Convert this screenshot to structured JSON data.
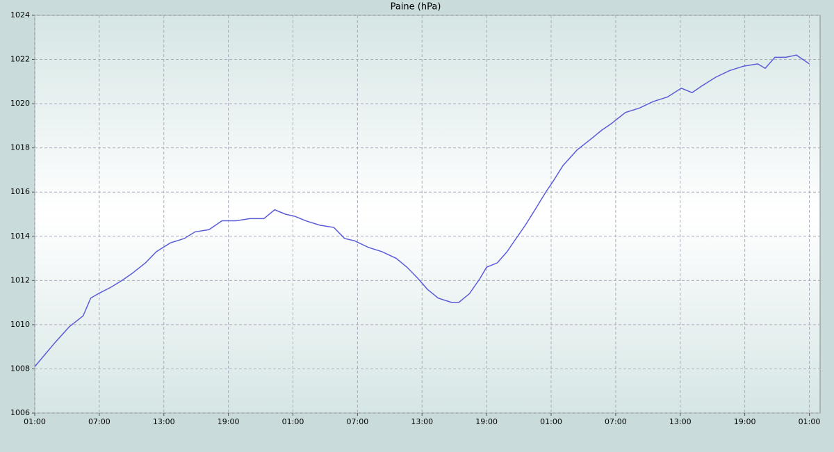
{
  "chart_data": {
    "type": "line",
    "title": "Paine (hPa)",
    "x": [
      0,
      1.9,
      3.2,
      4.5,
      5.2,
      5.9,
      7.1,
      8.1,
      9.0,
      10.3,
      11.3,
      12.6,
      13.9,
      14.9,
      16.2,
      17.4,
      18.7,
      20.0,
      21.3,
      22.3,
      23.3,
      24.2,
      25.2,
      26.5,
      27.8,
      28.8,
      29.7,
      31.0,
      32.3,
      33.6,
      34.6,
      35.6,
      36.5,
      37.5,
      38.8,
      39.4,
      40.4,
      41.4,
      42.0,
      43.0,
      43.9,
      44.6,
      45.6,
      46.5,
      47.5,
      48.2,
      49.1,
      50.4,
      51.7,
      52.7,
      53.6,
      54.9,
      56.2,
      57.5,
      58.8,
      60.1,
      61.1,
      62.0,
      63.3,
      64.6,
      65.9,
      67.2,
      67.9,
      68.8,
      69.8,
      70.8,
      71.4,
      72.0
    ],
    "series": [
      {
        "color": "#5b5bd8",
        "values": [
          1008.1,
          1009.2,
          1009.9,
          1010.4,
          1011.2,
          1011.4,
          1011.7,
          1012.0,
          1012.3,
          1012.8,
          1013.3,
          1013.7,
          1013.9,
          1014.2,
          1014.3,
          1014.7,
          1014.7,
          1014.8,
          1014.8,
          1015.2,
          1015.0,
          1014.9,
          1014.7,
          1014.5,
          1014.4,
          1013.9,
          1013.8,
          1013.5,
          1013.3,
          1013.0,
          1012.6,
          1012.1,
          1011.6,
          1011.2,
          1011.0,
          1011.0,
          1011.4,
          1012.1,
          1012.6,
          1012.8,
          1013.3,
          1013.8,
          1014.5,
          1015.2,
          1016.0,
          1016.5,
          1017.2,
          1017.9,
          1018.4,
          1018.8,
          1019.1,
          1019.6,
          1019.8,
          1020.1,
          1020.3,
          1020.7,
          1020.5,
          1020.8,
          1021.2,
          1021.5,
          1021.7,
          1021.8,
          1021.6,
          1022.1,
          1022.1,
          1022.2,
          1022.0,
          1021.8
        ]
      }
    ],
    "xlim": [
      0,
      73.0
    ],
    "xticks": [
      {
        "value": 0,
        "label": "01:00"
      },
      {
        "value": 6,
        "label": "07:00"
      },
      {
        "value": 12,
        "label": "13:00"
      },
      {
        "value": 18,
        "label": "19:00"
      },
      {
        "value": 24,
        "label": "01:00"
      },
      {
        "value": 30,
        "label": "07:00"
      },
      {
        "value": 36,
        "label": "13:00"
      },
      {
        "value": 42,
        "label": "19:00"
      },
      {
        "value": 48,
        "label": "01:00"
      },
      {
        "value": 54,
        "label": "07:00"
      },
      {
        "value": 60,
        "label": "13:00"
      },
      {
        "value": 66,
        "label": "19:00"
      },
      {
        "value": 72,
        "label": "01:00"
      }
    ],
    "ylim": [
      1006,
      1024
    ],
    "yticks": [
      1006,
      1008,
      1010,
      1012,
      1014,
      1016,
      1018,
      1020,
      1022,
      1024
    ],
    "grid": true
  }
}
